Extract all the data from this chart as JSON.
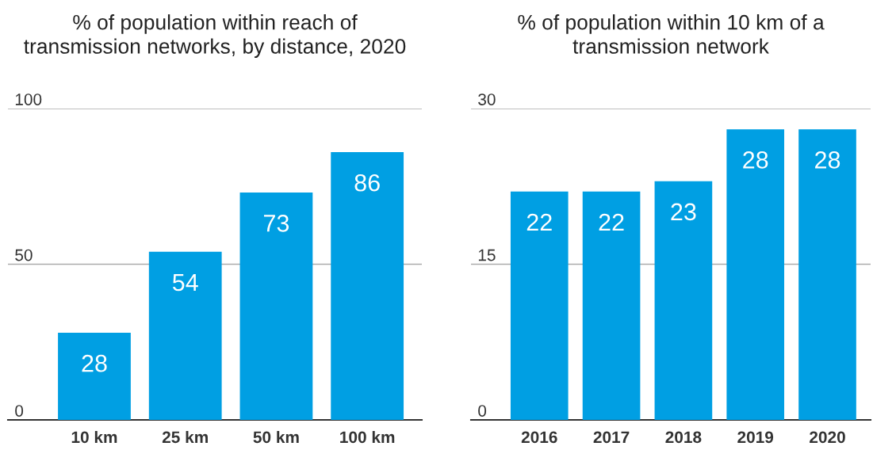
{
  "chart_data": [
    {
      "type": "bar",
      "title": "% of population within reach of\ntransmission networks, by distance, 2020",
      "categories": [
        "10 km",
        "25 km",
        "50 km",
        "100 km"
      ],
      "values": [
        28,
        54,
        73,
        86
      ],
      "color": "#009fe3",
      "ylim": [
        0,
        100
      ],
      "yticks": [
        0,
        50,
        100
      ],
      "grid": "y",
      "data_labels": true
    },
    {
      "type": "bar",
      "title": "% of population within 10 km of a\ntransmission network",
      "categories": [
        "2016",
        "2017",
        "2018",
        "2019",
        "2020"
      ],
      "values": [
        22,
        22,
        23,
        28,
        28
      ],
      "color": "#009fe3",
      "ylim": [
        0,
        30
      ],
      "yticks": [
        0,
        15,
        30
      ],
      "grid": "y",
      "data_labels": true
    }
  ]
}
